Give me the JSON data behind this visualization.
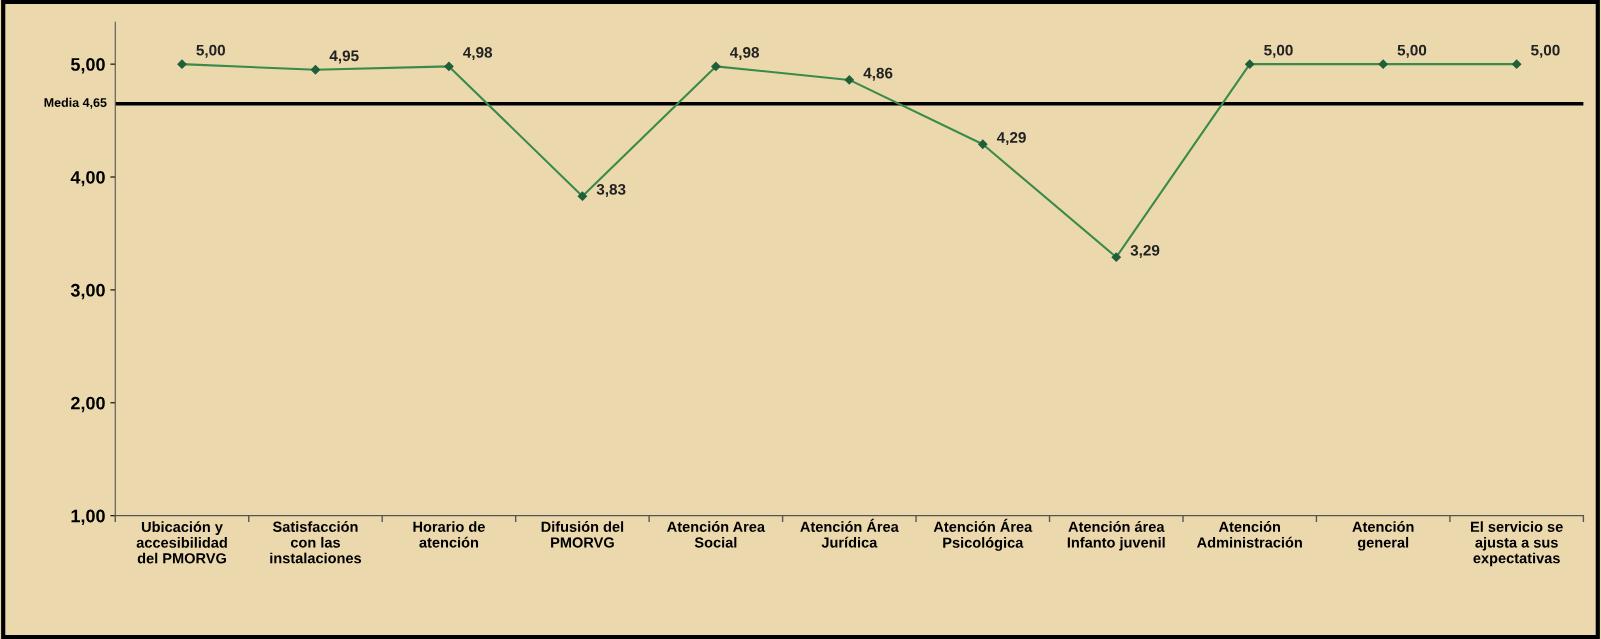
{
  "chart_data": {
    "type": "line",
    "categories": [
      "Ubicación y\naccesibilidad\ndel PMORVG",
      "Satisfacción\ncon las\ninstalaciones",
      "Horario de\natención",
      "Difusión del\nPMORVG",
      "Atención Area\nSocial",
      "Atención Área\nJurídica",
      "Atención Área\nPsicológica",
      "Atención área\nInfanto juvenil",
      "Atención\nAdministración",
      "Atención\ngeneral",
      "El servicio se\najusta a sus\nexpectativas"
    ],
    "series": [
      {
        "color": "#3a8a4a",
        "values": [
          5.0,
          4.95,
          4.98,
          3.83,
          4.98,
          4.86,
          4.29,
          3.29,
          5.0,
          5.0,
          5.0
        ],
        "value_labels": [
          "5,00",
          "4,95",
          "4,98",
          "3,83",
          "4,98",
          "4,86",
          "4,29",
          "3,29",
          "5,00",
          "5,00",
          "5,00"
        ]
      }
    ],
    "ylim": [
      1,
      5.37
    ],
    "yticks": [
      {
        "value": 1,
        "label": "1,00"
      },
      {
        "value": 2,
        "label": "2,00"
      },
      {
        "value": 3,
        "label": "3,00"
      },
      {
        "value": 4,
        "label": "4,00"
      },
      {
        "value": 5,
        "label": "5,00"
      }
    ],
    "ref_lines": [
      {
        "axis": "y",
        "value": 4.65,
        "label": "Media 4,65",
        "color": "#000000"
      }
    ],
    "marker": "diamond",
    "line_style": "solid",
    "grid": false,
    "legend": false
  }
}
